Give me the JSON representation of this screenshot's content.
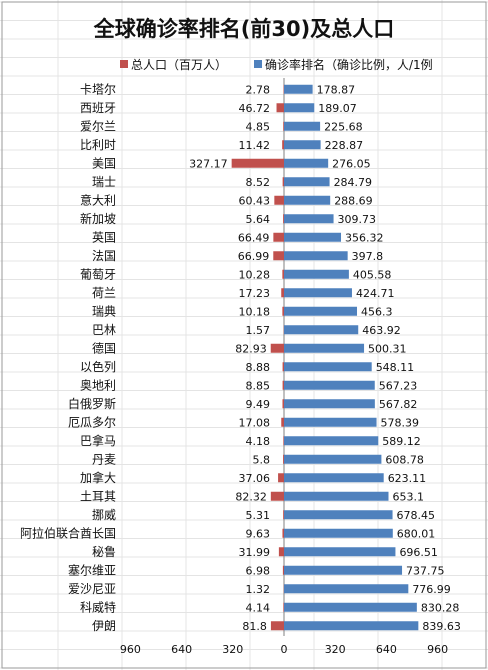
{
  "chart_data": {
    "type": "bar",
    "orientation": "horizontal-butterfly",
    "title": "全球确诊率排名(前30)及总人口",
    "legend_position": "top",
    "grid": true,
    "categories": [
      "卡塔尔",
      "西班牙",
      "爱尔兰",
      "比利时",
      "美国",
      "瑞士",
      "意大利",
      "新加坡",
      "英国",
      "法国",
      "葡萄牙",
      "荷兰",
      "瑞典",
      "巴林",
      "德国",
      "以色列",
      "奥地利",
      "白俄罗斯",
      "厄瓜多尔",
      "巴拿马",
      "丹麦",
      "加拿大",
      "土耳其",
      "挪威",
      "阿拉伯联合酋长国",
      "秘鲁",
      "塞尔维亚",
      "爱沙尼亚",
      "科威特",
      "伊朗"
    ],
    "series": [
      {
        "name": "总人口（百万人）",
        "color": "#c0504d",
        "side": "left",
        "values": [
          2.78,
          46.72,
          4.85,
          11.42,
          327.17,
          8.52,
          60.43,
          5.64,
          66.49,
          66.99,
          10.28,
          17.23,
          10.18,
          1.57,
          82.93,
          8.88,
          8.85,
          9.49,
          17.08,
          4.18,
          5.8,
          37.06,
          82.32,
          5.31,
          9.63,
          31.99,
          6.98,
          1.32,
          4.14,
          81.8
        ],
        "labels": [
          "2.78",
          "46.72",
          "4.85",
          "11.42",
          "327.17",
          "8.52",
          "60.43",
          "5.64",
          "66.49",
          "66.99",
          "10.28",
          "17.23",
          "10.18",
          "1.57",
          "82.93",
          "8.88",
          "8.85",
          "9.49",
          "17.08",
          "4.18",
          "5.8",
          "37.06",
          "82.32",
          "5.31",
          "9.63",
          "31.99",
          "6.98",
          "1.32",
          "4.14",
          "81.8"
        ]
      },
      {
        "name": "确诊率排名（确诊比例，人/1例",
        "color": "#4f81bd",
        "side": "right",
        "values": [
          178.87,
          189.07,
          225.68,
          228.87,
          276.05,
          284.79,
          288.69,
          309.73,
          356.32,
          397.8,
          405.58,
          424.71,
          456.3,
          463.92,
          500.31,
          548.11,
          567.23,
          567.82,
          578.39,
          589.12,
          608.78,
          623.11,
          653.1,
          678.45,
          680.01,
          696.51,
          737.75,
          776.99,
          830.28,
          839.63
        ],
        "labels": [
          "178.87",
          "189.07",
          "225.68",
          "228.87",
          "276.05",
          "284.79",
          "288.69",
          "309.73",
          "356.32",
          "397.8",
          "405.58",
          "424.71",
          "456.3",
          "463.92",
          "500.31",
          "548.11",
          "567.23",
          "567.82",
          "578.39",
          "589.12",
          "608.78",
          "623.11",
          "653.1",
          "678.45",
          "680.01",
          "696.51",
          "737.75",
          "776.99",
          "830.28",
          "839.63"
        ]
      }
    ],
    "xlim": [
      -960,
      960
    ],
    "xticks": [
      -960,
      -640,
      -320,
      0,
      320,
      640,
      960
    ],
    "xtick_labels": [
      "960",
      "640",
      "320",
      "0",
      "320",
      "640",
      "960"
    ]
  }
}
